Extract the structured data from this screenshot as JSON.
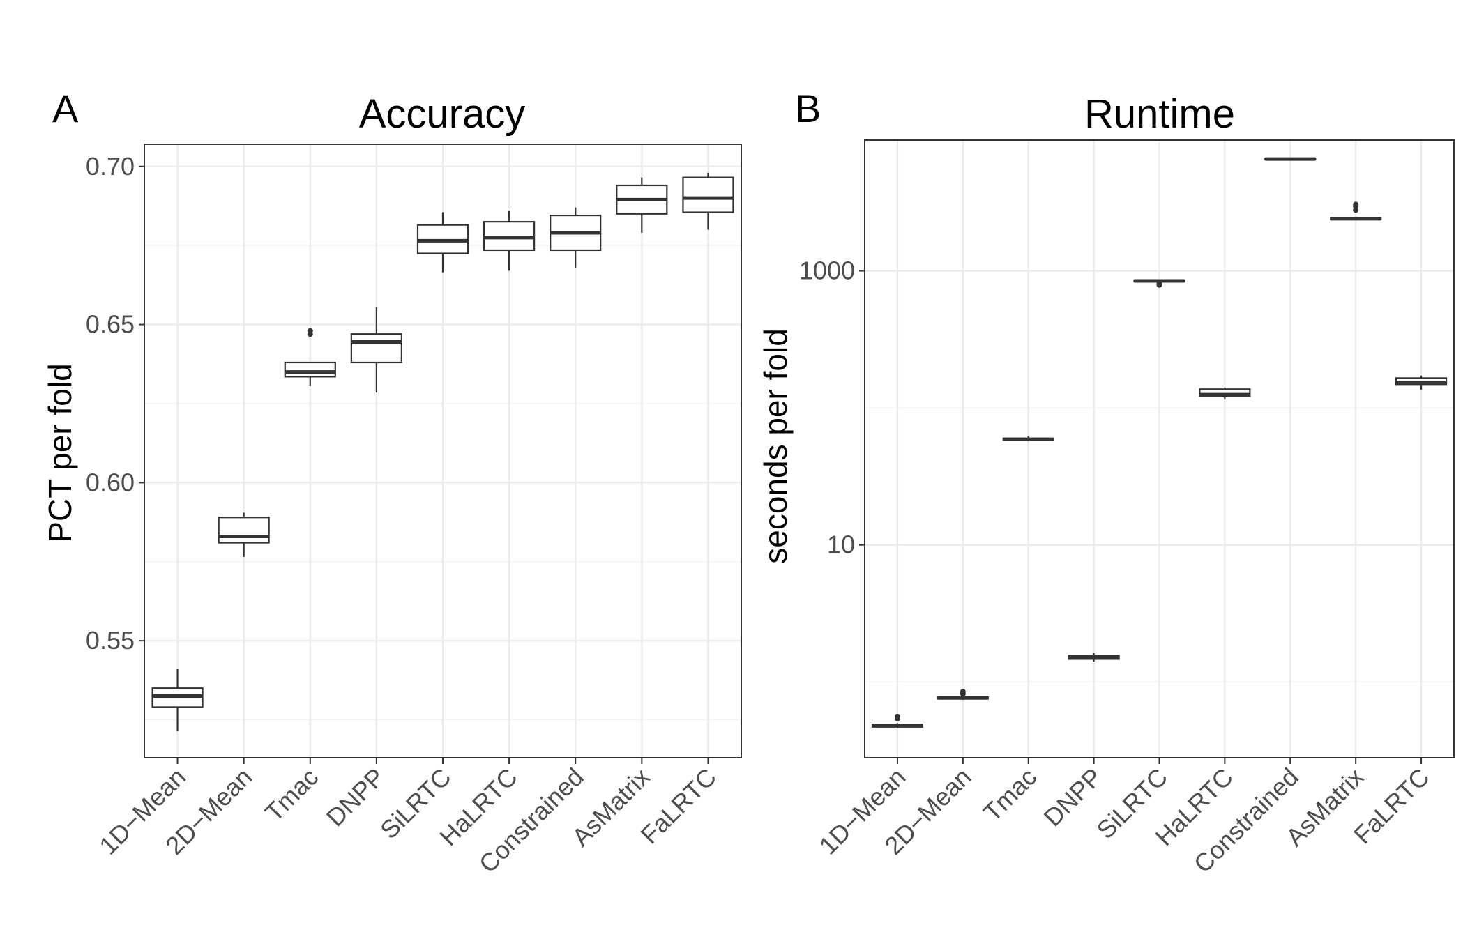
{
  "chart_data": [
    {
      "type": "box",
      "panel_tag": "A",
      "title": "Accuracy",
      "xlabel": "",
      "ylabel": "PCT per fold",
      "y_scale": "linear",
      "ylim": [
        0.513,
        0.707
      ],
      "y_ticks": [
        0.55,
        0.6,
        0.65,
        0.7
      ],
      "y_tick_labels": [
        "0.55",
        "0.60",
        "0.65",
        "0.70"
      ],
      "y_minor_ticks": [
        0.525,
        0.575,
        0.625,
        0.675
      ],
      "grid": true,
      "legend": "none",
      "categories": [
        "1D−Mean",
        "2D−Mean",
        "Tmac",
        "DNPP",
        "SiLRTC",
        "HaLRTC",
        "Constrained",
        "AsMatrix",
        "FaLRTC"
      ],
      "boxes": [
        {
          "min": 0.5215,
          "q1": 0.529,
          "median": 0.5325,
          "q3": 0.535,
          "max": 0.541,
          "outliers": []
        },
        {
          "min": 0.5765,
          "q1": 0.581,
          "median": 0.583,
          "q3": 0.589,
          "max": 0.5905,
          "outliers": []
        },
        {
          "min": 0.6305,
          "q1": 0.6335,
          "median": 0.635,
          "q3": 0.638,
          "max": 0.638,
          "outliers": [
            0.647,
            0.648
          ]
        },
        {
          "min": 0.6285,
          "q1": 0.638,
          "median": 0.6445,
          "q3": 0.647,
          "max": 0.6555,
          "outliers": []
        },
        {
          "min": 0.6665,
          "q1": 0.6725,
          "median": 0.6765,
          "q3": 0.6815,
          "max": 0.6855,
          "outliers": []
        },
        {
          "min": 0.667,
          "q1": 0.6735,
          "median": 0.6775,
          "q3": 0.6825,
          "max": 0.686,
          "outliers": []
        },
        {
          "min": 0.668,
          "q1": 0.6735,
          "median": 0.679,
          "q3": 0.6845,
          "max": 0.687,
          "outliers": []
        },
        {
          "min": 0.679,
          "q1": 0.685,
          "median": 0.6895,
          "q3": 0.694,
          "max": 0.6965,
          "outliers": []
        },
        {
          "min": 0.68,
          "q1": 0.6855,
          "median": 0.69,
          "q3": 0.6965,
          "max": 0.698,
          "outliers": []
        }
      ]
    },
    {
      "type": "box",
      "panel_tag": "B",
      "title": "Runtime",
      "xlabel": "",
      "ylabel": "seconds per fold",
      "y_scale": "log10",
      "ylim": [
        0.28,
        9000
      ],
      "y_ticks": [
        10,
        1000
      ],
      "y_tick_labels": [
        "10",
        "1000"
      ],
      "y_minor_ticks": [
        1,
        100
      ],
      "grid": true,
      "legend": "none",
      "categories": [
        "1D−Mean",
        "2D−Mean",
        "Tmac",
        "DNPP",
        "SiLRTC",
        "HaLRTC",
        "Constrained",
        "AsMatrix",
        "FaLRTC"
      ],
      "boxes": [
        {
          "min": 0.46,
          "q1": 0.47,
          "median": 0.48,
          "q3": 0.49,
          "max": 0.5,
          "outliers": [
            0.54,
            0.56
          ]
        },
        {
          "min": 0.74,
          "q1": 0.755,
          "median": 0.765,
          "q3": 0.775,
          "max": 0.79,
          "outliers": [
            0.82,
            0.85
          ]
        },
        {
          "min": 57,
          "q1": 58,
          "median": 59,
          "q3": 60,
          "max": 62,
          "outliers": []
        },
        {
          "min": 1.41,
          "q1": 1.47,
          "median": 1.51,
          "q3": 1.56,
          "max": 1.62,
          "outliers": []
        },
        {
          "min": 820,
          "q1": 835,
          "median": 845,
          "q3": 855,
          "max": 865,
          "outliers": [
            790,
            805
          ]
        },
        {
          "min": 115,
          "q1": 121,
          "median": 125,
          "q3": 137,
          "max": 141,
          "outliers": []
        },
        {
          "min": 6450,
          "q1": 6500,
          "median": 6550,
          "q3": 6600,
          "max": 6650,
          "outliers": []
        },
        {
          "min": 2350,
          "q1": 2380,
          "median": 2400,
          "q3": 2420,
          "max": 2440,
          "outliers": [
            2780,
            2950,
            3050
          ]
        },
        {
          "min": 136,
          "q1": 147,
          "median": 152,
          "q3": 165,
          "max": 172,
          "outliers": []
        }
      ]
    }
  ]
}
